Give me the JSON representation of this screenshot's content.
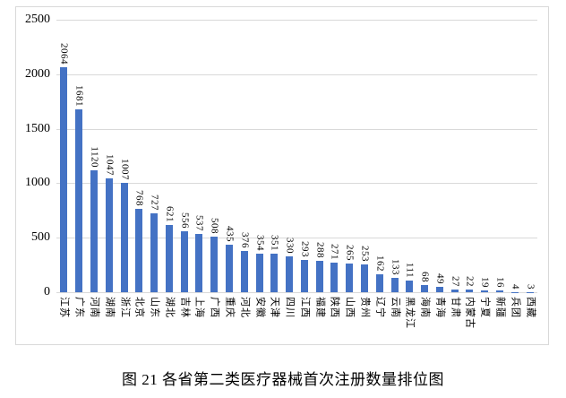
{
  "figure": {
    "caption": "图 21  各省第二类医疗器械首次注册数量排位图"
  },
  "colors": {
    "bar": "#4472C4",
    "gridline": "#D9D9D9",
    "frame_border": "#D9D9D9",
    "text": "#000000"
  },
  "chart_data": {
    "type": "bar",
    "title": "图 21  各省第二类医疗器械首次注册数量排位图",
    "xlabel": "",
    "ylabel": "",
    "ylim": [
      0,
      2500
    ],
    "y_ticks": [
      0,
      500,
      1000,
      1500,
      2000,
      2500
    ],
    "grid": true,
    "value_labels": "rotated-90deg-above-bars",
    "category_labels": "rotated-90deg-below-axis",
    "categories": [
      "江苏",
      "广东",
      "河南",
      "湖南",
      "浙江",
      "北京",
      "山东",
      "湖北",
      "吉林",
      "上海",
      "广西",
      "重庆",
      "河北",
      "安徽",
      "天津",
      "四川",
      "江西",
      "福建",
      "陕西",
      "山西",
      "贵州",
      "辽宁",
      "云南",
      "黑龙江",
      "海南",
      "青海",
      "甘肃",
      "内蒙古",
      "宁夏",
      "新疆",
      "兵团",
      "西藏"
    ],
    "values": [
      2064,
      1681,
      1120,
      1047,
      1007,
      768,
      727,
      621,
      556,
      537,
      508,
      435,
      376,
      354,
      351,
      330,
      293,
      288,
      271,
      265,
      253,
      162,
      133,
      111,
      68,
      49,
      27,
      22,
      19,
      16,
      4,
      3
    ]
  }
}
